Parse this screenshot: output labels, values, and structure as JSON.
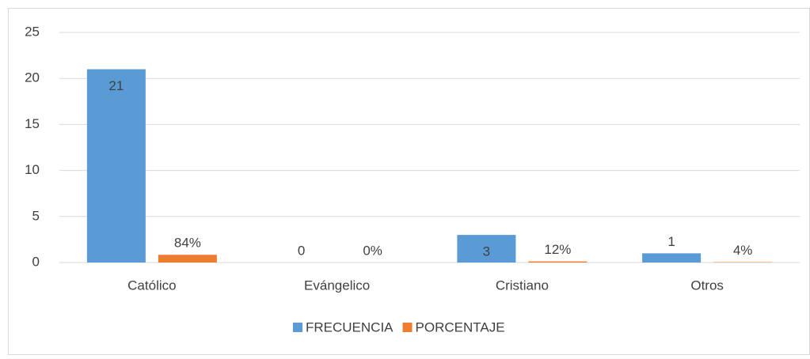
{
  "chart_data": {
    "type": "bar",
    "categories": [
      "Católico",
      "Evángelico",
      "Cristiano",
      "Otros"
    ],
    "series": [
      {
        "name": "FRECUENCIA",
        "color": "#5b9bd5",
        "values": [
          21,
          0,
          3,
          1
        ]
      },
      {
        "name": "PORCENTAJE",
        "color": "#ed7d31",
        "values": [
          0.84,
          0,
          0.12,
          0.04
        ],
        "value_labels": [
          "84%",
          "0%",
          "12%",
          "4%"
        ]
      }
    ],
    "ylim": [
      0,
      25
    ],
    "yticks": [
      0,
      5,
      10,
      15,
      20,
      25
    ],
    "grid": true,
    "legend": "bottom"
  }
}
